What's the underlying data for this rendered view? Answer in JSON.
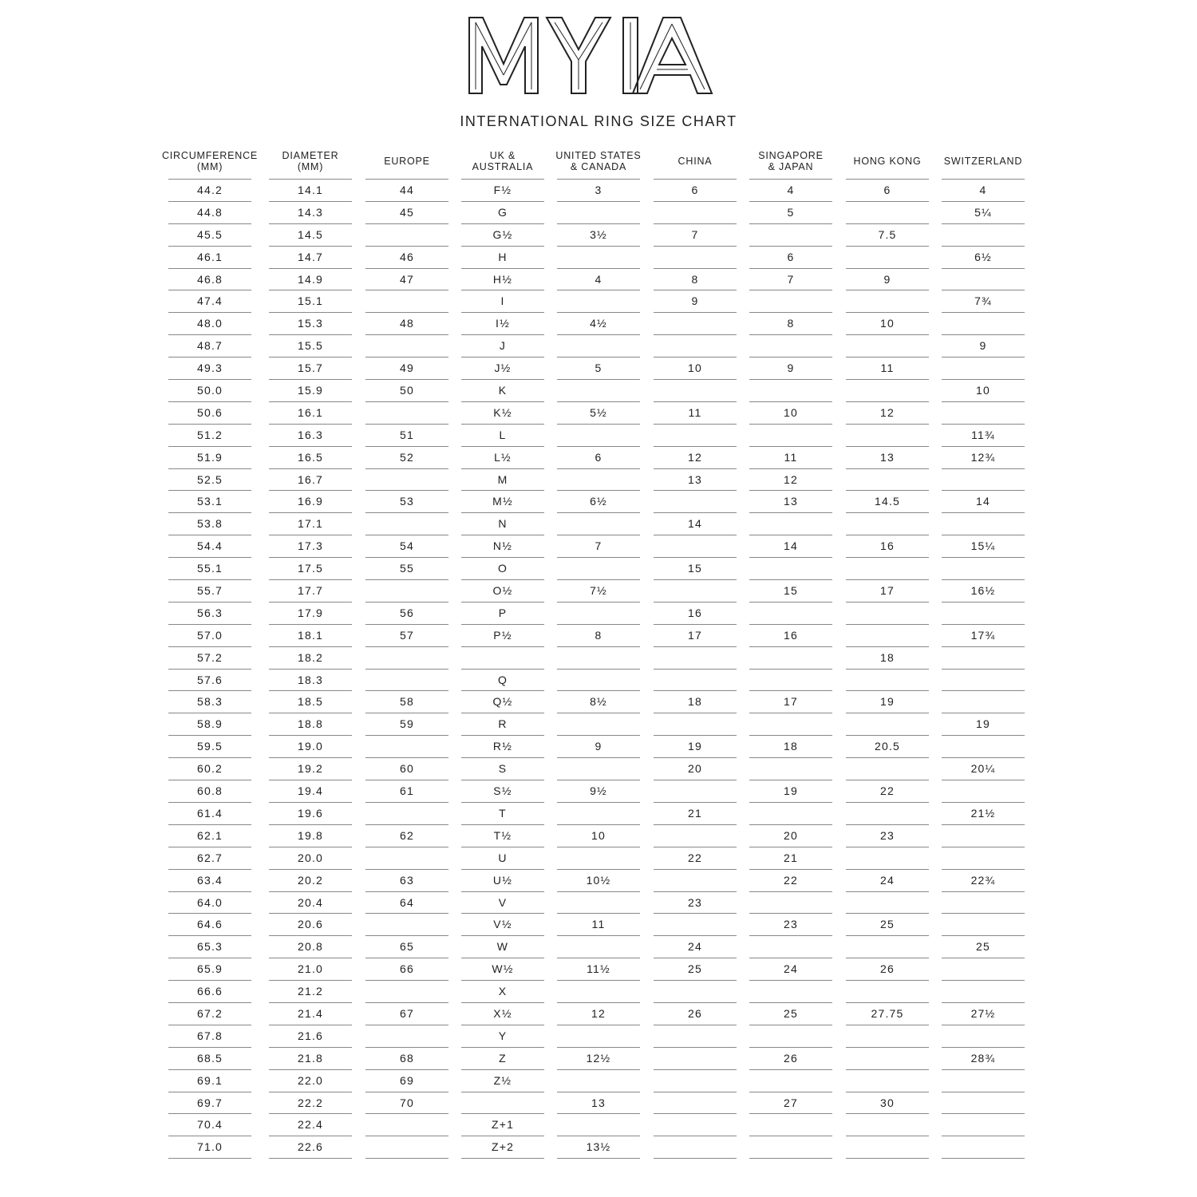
{
  "logo_text": "MYIA",
  "title": "INTERNATIONAL RING SIZE CHART",
  "columns": [
    "CIRCUMFERENCE\n(MM)",
    "DIAMETER\n(MM)",
    "EUROPE",
    "UK &\nAUSTRALIA",
    "UNITED STATES\n& CANADA",
    "CHINA",
    "SINGAPORE\n& JAPAN",
    "HONG KONG",
    "SWITZERLAND"
  ],
  "rows": [
    [
      "44.2",
      "14.1",
      "44",
      "F½",
      "3",
      "6",
      "4",
      "6",
      "4"
    ],
    [
      "44.8",
      "14.3",
      "45",
      "G",
      "",
      "",
      "5",
      "",
      "5¼"
    ],
    [
      "45.5",
      "14.5",
      "",
      "G½",
      "3½",
      "7",
      "",
      "7.5",
      ""
    ],
    [
      "46.1",
      "14.7",
      "46",
      "H",
      "",
      "",
      "6",
      "",
      "6½"
    ],
    [
      "46.8",
      "14.9",
      "47",
      "H½",
      "4",
      "8",
      "7",
      "9",
      ""
    ],
    [
      "47.4",
      "15.1",
      "",
      "I",
      "",
      "9",
      "",
      "",
      "7¾"
    ],
    [
      "48.0",
      "15.3",
      "48",
      "I½",
      "4½",
      "",
      "8",
      "10",
      ""
    ],
    [
      "48.7",
      "15.5",
      "",
      "J",
      "",
      "",
      "",
      "",
      "9"
    ],
    [
      "49.3",
      "15.7",
      "49",
      "J½",
      "5",
      "10",
      "9",
      "11",
      ""
    ],
    [
      "50.0",
      "15.9",
      "50",
      "K",
      "",
      "",
      "",
      "",
      "10"
    ],
    [
      "50.6",
      "16.1",
      "",
      "K½",
      "5½",
      "11",
      "10",
      "12",
      ""
    ],
    [
      "51.2",
      "16.3",
      "51",
      "L",
      "",
      "",
      "",
      "",
      "11¾"
    ],
    [
      "51.9",
      "16.5",
      "52",
      "L½",
      "6",
      "12",
      "11",
      "13",
      "12¾"
    ],
    [
      "52.5",
      "16.7",
      "",
      "M",
      "",
      "13",
      "12",
      "",
      ""
    ],
    [
      "53.1",
      "16.9",
      "53",
      "M½",
      "6½",
      "",
      "13",
      "14.5",
      "14"
    ],
    [
      "53.8",
      "17.1",
      "",
      "N",
      "",
      "14",
      "",
      "",
      ""
    ],
    [
      "54.4",
      "17.3",
      "54",
      "N½",
      "7",
      "",
      "14",
      "16",
      "15¼"
    ],
    [
      "55.1",
      "17.5",
      "55",
      "O",
      "",
      "15",
      "",
      "",
      ""
    ],
    [
      "55.7",
      "17.7",
      "",
      "O½",
      "7½",
      "",
      "15",
      "17",
      "16½"
    ],
    [
      "56.3",
      "17.9",
      "56",
      "P",
      "",
      "16",
      "",
      "",
      ""
    ],
    [
      "57.0",
      "18.1",
      "57",
      "P½",
      "8",
      "17",
      "16",
      "",
      "17¾"
    ],
    [
      "57.2",
      "18.2",
      "",
      "",
      "",
      "",
      "",
      "18",
      ""
    ],
    [
      "57.6",
      "18.3",
      "",
      "Q",
      "",
      "",
      "",
      "",
      ""
    ],
    [
      "58.3",
      "18.5",
      "58",
      "Q½",
      "8½",
      "18",
      "17",
      "19",
      ""
    ],
    [
      "58.9",
      "18.8",
      "59",
      "R",
      "",
      "",
      "",
      "",
      "19"
    ],
    [
      "59.5",
      "19.0",
      "",
      "R½",
      "9",
      "19",
      "18",
      "20.5",
      ""
    ],
    [
      "60.2",
      "19.2",
      "60",
      "S",
      "",
      "20",
      "",
      "",
      "20¼"
    ],
    [
      "60.8",
      "19.4",
      "61",
      "S½",
      "9½",
      "",
      "19",
      "22",
      ""
    ],
    [
      "61.4",
      "19.6",
      "",
      "T",
      "",
      "21",
      "",
      "",
      "21½"
    ],
    [
      "62.1",
      "19.8",
      "62",
      "T½",
      "10",
      "",
      "20",
      "23",
      ""
    ],
    [
      "62.7",
      "20.0",
      "",
      "U",
      "",
      "22",
      "21",
      "",
      ""
    ],
    [
      "63.4",
      "20.2",
      "63",
      "U½",
      "10½",
      "",
      "22",
      "24",
      "22¾"
    ],
    [
      "64.0",
      "20.4",
      "64",
      "V",
      "",
      "23",
      "",
      "",
      ""
    ],
    [
      "64.6",
      "20.6",
      "",
      "V½",
      "11",
      "",
      "23",
      "25",
      ""
    ],
    [
      "65.3",
      "20.8",
      "65",
      "W",
      "",
      "24",
      "",
      "",
      "25"
    ],
    [
      "65.9",
      "21.0",
      "66",
      "W½",
      "11½",
      "25",
      "24",
      "26",
      ""
    ],
    [
      "66.6",
      "21.2",
      "",
      "X",
      "",
      "",
      "",
      "",
      ""
    ],
    [
      "67.2",
      "21.4",
      "67",
      "X½",
      "12",
      "26",
      "25",
      "27.75",
      "27½"
    ],
    [
      "67.8",
      "21.6",
      "",
      "Y",
      "",
      "",
      "",
      "",
      ""
    ],
    [
      "68.5",
      "21.8",
      "68",
      "Z",
      "12½",
      "",
      "26",
      "",
      "28¾"
    ],
    [
      "69.1",
      "22.0",
      "69",
      "Z½",
      "",
      "",
      "",
      "",
      ""
    ],
    [
      "69.7",
      "22.2",
      "70",
      "",
      "13",
      "",
      "27",
      "30",
      ""
    ],
    [
      "70.4",
      "22.4",
      "",
      "Z+1",
      "",
      "",
      "",
      "",
      ""
    ],
    [
      "71.0",
      "22.6",
      "",
      "Z+2",
      "13½",
      "",
      "",
      "",
      ""
    ]
  ]
}
